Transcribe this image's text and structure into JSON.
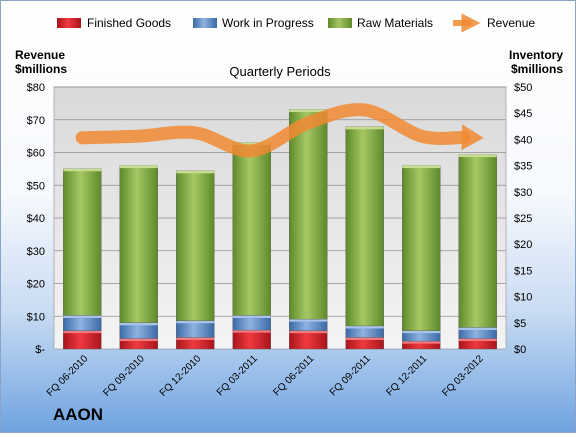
{
  "chart_data": {
    "type": "bar",
    "stacked": true,
    "title": "Quarterly Periods",
    "company": "AAON",
    "left_axis_label": [
      "Revenue",
      "$millions"
    ],
    "right_axis_label": [
      "Inventory",
      "$millions"
    ],
    "categories": [
      "FQ 06-2010",
      "FQ 09-2010",
      "FQ 12-2010",
      "FQ 03-2011",
      "FQ 06-2011",
      "FQ 09-2011",
      "FQ 12-2011",
      "FQ 03-2012"
    ],
    "left_ticks": [
      "$-",
      "$10",
      "$20",
      "$30",
      "$40",
      "$50",
      "$60",
      "$70",
      "$80"
    ],
    "right_ticks": [
      "$0",
      "$5",
      "$10",
      "$15",
      "$20",
      "$25",
      "$30",
      "$35",
      "$40",
      "$45",
      "$50"
    ],
    "left_ylim": [
      0,
      80
    ],
    "right_ylim": [
      0,
      50
    ],
    "legend_position": "top",
    "series": [
      {
        "name": "Finished Goods",
        "axis": "right",
        "kind": "bar",
        "color": "#d7202a",
        "values": [
          3.5,
          2.0,
          2.2,
          3.6,
          3.5,
          2.2,
          1.5,
          2.0
        ]
      },
      {
        "name": "Work in Progress",
        "axis": "right",
        "kind": "bar",
        "color": "#4f7fc0",
        "values": [
          2.9,
          3.0,
          3.2,
          2.8,
          2.2,
          2.2,
          2.0,
          2.1
        ]
      },
      {
        "name": "Raw Materials",
        "axis": "right",
        "kind": "bar",
        "color": "#7aa43c",
        "values": [
          28.0,
          30.0,
          28.6,
          33.0,
          40.0,
          38.0,
          31.5,
          33.0
        ]
      },
      {
        "name": "Revenue",
        "axis": "left",
        "kind": "line",
        "color": "#f08a33",
        "values": [
          64.5,
          65.0,
          66.0,
          60.5,
          69.0,
          73.0,
          65.0,
          64.5
        ]
      }
    ]
  }
}
